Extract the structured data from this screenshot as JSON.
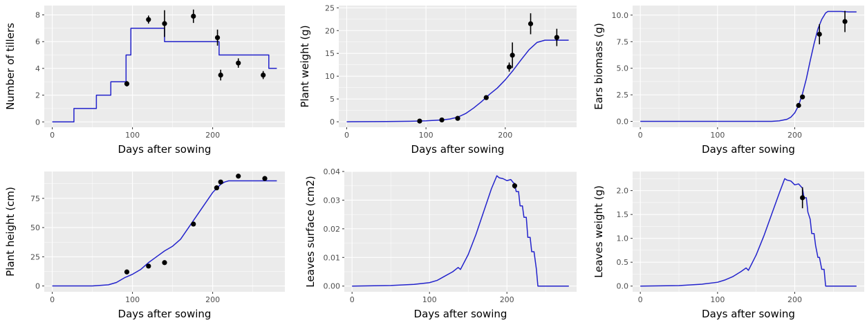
{
  "chart_data": [
    {
      "type": "line",
      "xlabel": "Days after sowing",
      "ylabel": "Number of tillers",
      "xlim": [
        -10,
        290
      ],
      "ylim": [
        -0.4,
        8.7
      ],
      "xticks": [
        0,
        100,
        200
      ],
      "yticks": [
        0,
        2,
        4,
        6,
        8
      ],
      "ytick_labels": [
        "0",
        "2",
        "4",
        "6",
        "8"
      ],
      "line_color": "#2222cc",
      "simulated": {
        "step": true,
        "x": [
          0,
          27,
          55,
          73,
          92,
          98,
          140,
          208,
          270,
          280
        ],
        "y": [
          0,
          1,
          2,
          3,
          5,
          7,
          6,
          5,
          4,
          4
        ]
      },
      "observed": {
        "x": [
          93,
          120,
          140,
          176,
          206,
          210,
          232,
          263
        ],
        "y": [
          2.85,
          7.65,
          7.35,
          7.9,
          6.3,
          3.5,
          4.4,
          3.5
        ],
        "err": [
          0.2,
          0.3,
          1.0,
          0.5,
          0.6,
          0.4,
          0.35,
          0.3
        ]
      }
    },
    {
      "type": "line",
      "xlabel": "Days after sowing",
      "ylabel": "Plant weight (g)",
      "xlim": [
        -10,
        290
      ],
      "ylim": [
        -1.2,
        25.5
      ],
      "xticks": [
        0,
        100,
        200
      ],
      "yticks": [
        0,
        5,
        10,
        15,
        20,
        25
      ],
      "ytick_labels": [
        "0",
        "5",
        "10",
        "15",
        "20",
        "25"
      ],
      "line_color": "#2222cc",
      "simulated": {
        "step": false,
        "x": [
          0,
          50,
          80,
          100,
          120,
          130,
          140,
          150,
          160,
          170,
          180,
          190,
          200,
          210,
          220,
          230,
          240,
          250,
          260,
          270,
          280
        ],
        "y": [
          0,
          0.05,
          0.1,
          0.2,
          0.4,
          0.6,
          1.0,
          1.8,
          3.0,
          4.4,
          6.0,
          7.4,
          9.2,
          11.3,
          13.6,
          15.8,
          17.4,
          17.9,
          17.9,
          17.9,
          17.9
        ]
      },
      "observed": {
        "x": [
          92,
          120,
          140,
          176,
          205,
          209,
          232,
          265
        ],
        "y": [
          0.15,
          0.4,
          0.75,
          5.3,
          12.0,
          14.6,
          21.5,
          18.5
        ],
        "err": [
          0.1,
          0.2,
          0.3,
          0.4,
          1.0,
          2.8,
          2.3,
          1.9
        ]
      }
    },
    {
      "type": "line",
      "xlabel": "Days after sowing",
      "ylabel": "Ears biomass (g)",
      "xlim": [
        -10,
        290
      ],
      "ylim": [
        -0.55,
        10.9
      ],
      "xticks": [
        0,
        100,
        200
      ],
      "yticks": [
        0,
        2.5,
        5,
        7.5,
        10
      ],
      "ytick_labels": [
        "0.0",
        "2.5",
        "5.0",
        "7.5",
        "10.0"
      ],
      "line_color": "#2222cc",
      "simulated": {
        "step": false,
        "x": [
          0,
          170,
          180,
          190,
          195,
          200,
          205,
          210,
          215,
          220,
          225,
          230,
          235,
          240,
          243,
          250,
          260,
          270,
          280
        ],
        "y": [
          0,
          0,
          0.05,
          0.2,
          0.4,
          0.8,
          1.5,
          2.6,
          4.0,
          5.7,
          7.3,
          8.7,
          9.6,
          10.2,
          10.35,
          10.35,
          10.35,
          10.3,
          10.3
        ]
      },
      "observed": {
        "x": [
          205,
          210,
          232,
          265
        ],
        "y": [
          1.5,
          2.3,
          8.2,
          9.4
        ],
        "err": [
          0.15,
          0.2,
          0.95,
          1.0
        ]
      }
    },
    {
      "type": "line",
      "xlabel": "Days after sowing",
      "ylabel": "Plant height (cm)",
      "xlim": [
        -10,
        290
      ],
      "ylim": [
        -5,
        98
      ],
      "xticks": [
        0,
        100,
        200
      ],
      "yticks": [
        0,
        25,
        50,
        75
      ],
      "ytick_labels": [
        "0",
        "25",
        "50",
        "75"
      ],
      "line_color": "#2222cc",
      "simulated": {
        "step": false,
        "x": [
          0,
          50,
          70,
          80,
          90,
          100,
          110,
          120,
          130,
          140,
          150,
          160,
          170,
          180,
          190,
          200,
          210,
          215,
          220,
          240,
          260,
          280
        ],
        "y": [
          0,
          0,
          1,
          3,
          7,
          10,
          14,
          20,
          25,
          30,
          34,
          40,
          50,
          60,
          70,
          80,
          87,
          89,
          90,
          90,
          90,
          90
        ]
      },
      "observed": {
        "x": [
          93,
          120,
          140,
          176,
          205,
          210,
          232,
          265
        ],
        "y": [
          12,
          17,
          20,
          53,
          84,
          89,
          94,
          92
        ],
        "err": [
          0,
          0,
          0,
          0,
          0,
          0,
          0,
          0
        ]
      }
    },
    {
      "type": "line",
      "xlabel": "Days after sowing",
      "ylabel": "Leaves surface (cm2)",
      "xlim": [
        -10,
        290
      ],
      "ylim": [
        -0.002,
        0.04
      ],
      "xticks": [
        0,
        100,
        200
      ],
      "yticks": [
        0,
        0.01,
        0.02,
        0.03,
        0.04
      ],
      "ytick_labels": [
        "0.00",
        "0.01",
        "0.02",
        "0.03",
        "0.04"
      ],
      "line_color": "#2222cc",
      "simulated": {
        "step": false,
        "x": [
          0,
          50,
          80,
          100,
          110,
          120,
          130,
          137,
          140,
          150,
          160,
          170,
          180,
          187,
          190,
          195,
          200,
          205,
          210,
          212,
          215,
          217,
          220,
          222,
          225,
          227,
          230,
          232,
          235,
          238,
          240,
          260,
          280
        ],
        "y": [
          0,
          0.0002,
          0.0006,
          0.0012,
          0.002,
          0.0035,
          0.005,
          0.0065,
          0.0058,
          0.011,
          0.018,
          0.026,
          0.034,
          0.0385,
          0.0378,
          0.0375,
          0.0368,
          0.0372,
          0.0355,
          0.033,
          0.033,
          0.028,
          0.028,
          0.024,
          0.024,
          0.017,
          0.017,
          0.012,
          0.012,
          0.006,
          0,
          0,
          0
        ]
      },
      "observed": {
        "x": [
          210
        ],
        "y": [
          0.035
        ],
        "err": [
          0.001
        ]
      }
    },
    {
      "type": "line",
      "xlabel": "Days after sowing",
      "ylabel": "Leaves weight (g)",
      "xlim": [
        -10,
        290
      ],
      "ylim": [
        -0.12,
        2.4
      ],
      "xticks": [
        0,
        100,
        200
      ],
      "yticks": [
        0,
        0.5,
        1,
        1.5,
        2
      ],
      "ytick_labels": [
        "0.0",
        "0.5",
        "1.0",
        "1.5",
        "2.0"
      ],
      "line_color": "#2222cc",
      "simulated": {
        "step": false,
        "x": [
          0,
          50,
          80,
          100,
          110,
          120,
          130,
          137,
          140,
          150,
          160,
          170,
          180,
          187,
          190,
          195,
          200,
          205,
          210,
          212,
          215,
          217,
          220,
          222,
          225,
          227,
          230,
          232,
          235,
          238,
          240,
          260,
          280
        ],
        "y": [
          0,
          0.01,
          0.04,
          0.08,
          0.13,
          0.2,
          0.3,
          0.38,
          0.33,
          0.65,
          1.05,
          1.5,
          1.95,
          2.25,
          2.22,
          2.2,
          2.12,
          2.14,
          2.05,
          1.85,
          1.85,
          1.55,
          1.4,
          1.1,
          1.1,
          0.85,
          0.6,
          0.6,
          0.35,
          0.35,
          0,
          0,
          0
        ]
      },
      "observed": {
        "x": [
          210
        ],
        "y": [
          1.85
        ],
        "err": [
          0.22
        ]
      }
    }
  ]
}
